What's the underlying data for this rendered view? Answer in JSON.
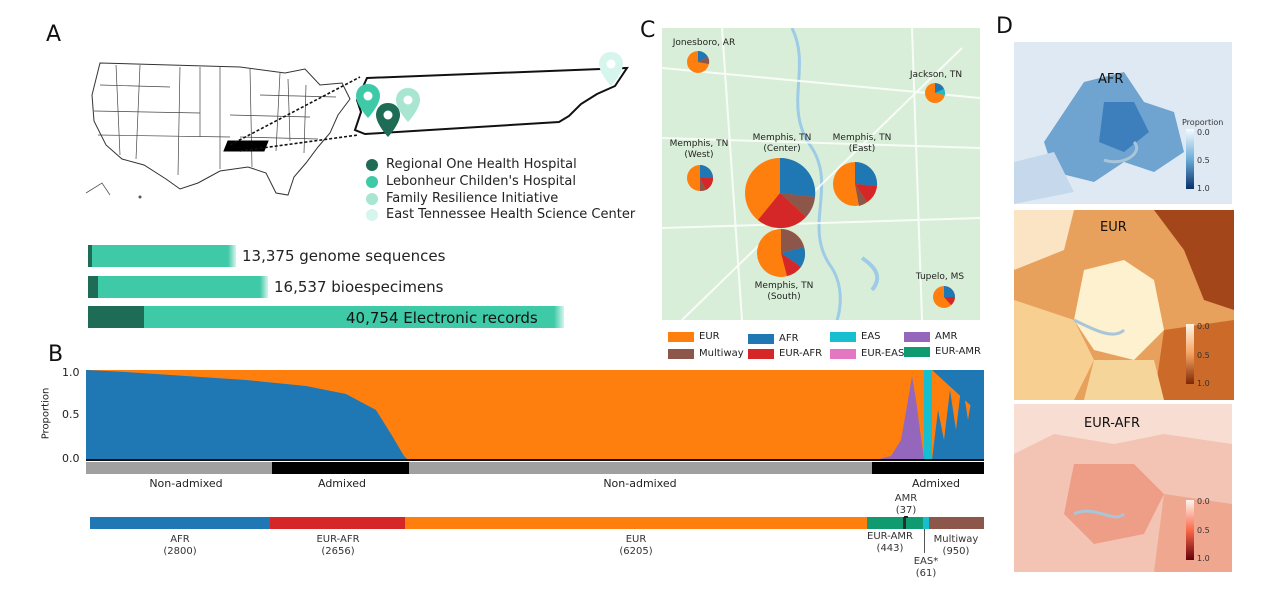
{
  "panels": {
    "a": "A",
    "b": "B",
    "c": "C",
    "d": "D"
  },
  "colors": {
    "eur": "#ff7f0e",
    "afr": "#1f77b4",
    "eas": "#17becf",
    "amr": "#9467bd",
    "multiway": "#8c564b",
    "eur_afr": "#d62728",
    "eur_eas": "#e377c2",
    "eur_amr": "#109a70",
    "teal": "#3ec9a7",
    "teal_dark": "#1e6b56"
  },
  "sites": [
    {
      "label": "Regional One Health Hospital",
      "color": "#1e6b56"
    },
    {
      "label": "Lebonheur Childen's Hospital",
      "color": "#3ec9a7"
    },
    {
      "label": "Family Resilience Initiative",
      "color": "#a8e6d2"
    },
    {
      "label": "East Tennessee Health Science Center",
      "color": "#d6f5ec"
    }
  ],
  "stats": [
    {
      "label": "13,375 genome sequences"
    },
    {
      "label": "16,537 bioespecimens"
    },
    {
      "label": "40,754 Electronic records"
    }
  ],
  "panel_b": {
    "ylabel": "Proportion",
    "yticks": [
      "1.0",
      "0.5",
      "0.0"
    ],
    "admix_labels": [
      "Non-admixed",
      "Admixed",
      "Non-admixed",
      "Admixed"
    ],
    "categories": [
      {
        "name": "AFR",
        "count": "(2800)"
      },
      {
        "name": "EUR-AFR",
        "count": "(2656)"
      },
      {
        "name": "EUR",
        "count": "(6205)"
      },
      {
        "name": "AMR",
        "count": "(37)"
      },
      {
        "name": "EUR-AMR",
        "count": "(443)"
      },
      {
        "name": "EAS*",
        "count": "(61)"
      },
      {
        "name": "Multiway",
        "count": "(950)"
      }
    ]
  },
  "panel_c": {
    "cities": [
      {
        "name": "Jonesboro, AR"
      },
      {
        "name": "Jackson, TN"
      },
      {
        "name": "Memphis, TN",
        "sub": "(West)"
      },
      {
        "name": "Memphis, TN",
        "sub": "(Center)"
      },
      {
        "name": "Memphis, TN",
        "sub": "(East)"
      },
      {
        "name": "Memphis, TN",
        "sub": "(South)"
      },
      {
        "name": "Tupelo, MS"
      }
    ],
    "legend": [
      "EUR",
      "AFR",
      "EAS",
      "AMR",
      "Multiway",
      "EUR-AFR",
      "EUR-EAS",
      "EUR-AMR"
    ]
  },
  "panel_d": {
    "maps": [
      {
        "title": "AFR",
        "cbar_label": "Proportion",
        "ticks": [
          "0.0",
          "0.5",
          "1.0"
        ]
      },
      {
        "title": "EUR",
        "ticks": [
          "0.0",
          "0.5",
          "1.0"
        ]
      },
      {
        "title": "EUR-AFR",
        "ticks": [
          "0.0",
          "0.5",
          "1.0"
        ]
      }
    ]
  }
}
